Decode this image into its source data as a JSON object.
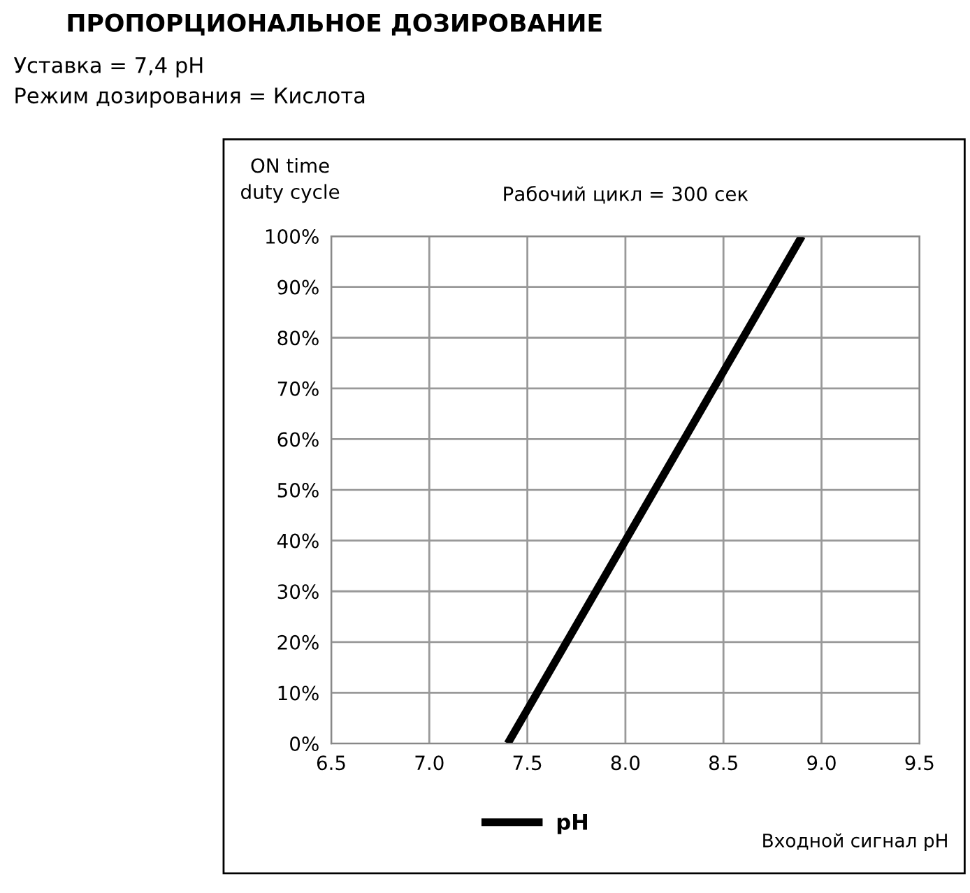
{
  "chart_data": {
    "type": "line",
    "title": "ПРОПОРЦИОНАЛЬНОЕ ДОЗИРОВАНИЕ",
    "annotations": [
      "Уставка = 7,4 pH",
      "Режим дозирования = Кислота",
      "Рабочий цикл = 300 сек"
    ],
    "ylabel": "ON time\nduty cycle",
    "xlabel": "Входной сигнал pH",
    "x": [
      7.4,
      8.9
    ],
    "series": [
      {
        "name": "pH",
        "color": "#000000",
        "values": [
          0,
          100
        ]
      }
    ],
    "xlim": [
      6.5,
      9.5
    ],
    "xticks": [
      6.5,
      {
        "value": 7,
        "label": "7.0"
      },
      7.5,
      {
        "value": 8,
        "label": "8.0"
      },
      8.5,
      {
        "value": 9,
        "label": "9.0"
      },
      9.5
    ],
    "ylim": [
      0,
      100
    ],
    "yticks": [
      {
        "value": 0,
        "label": "0%"
      },
      {
        "value": 10,
        "label": "10%"
      },
      {
        "value": 20,
        "label": "20%"
      },
      {
        "value": 30,
        "label": "30%"
      },
      {
        "value": 40,
        "label": "40%"
      },
      {
        "value": 50,
        "label": "50%"
      },
      {
        "value": 60,
        "label": "60%"
      },
      {
        "value": 70,
        "label": "70%"
      },
      {
        "value": 80,
        "label": "80%"
      },
      {
        "value": 90,
        "label": "90%"
      },
      {
        "value": 100,
        "label": "100%"
      }
    ],
    "grid": true,
    "legend": "bottom",
    "marker": "none",
    "line_style": "solid"
  }
}
